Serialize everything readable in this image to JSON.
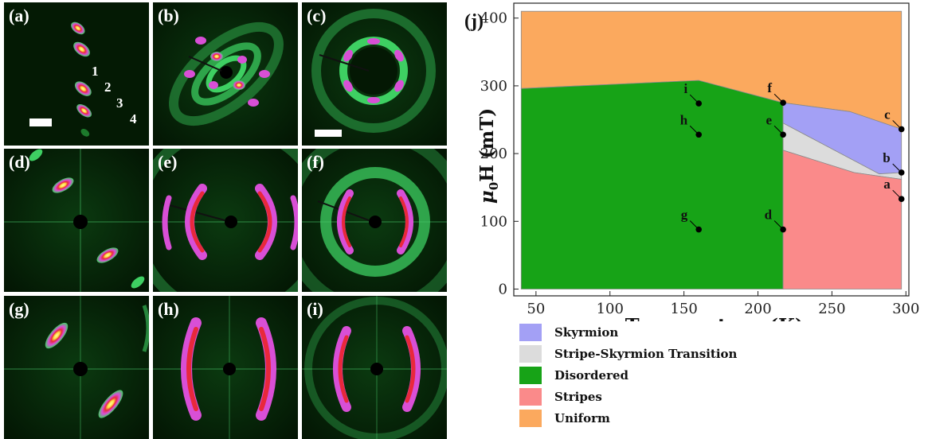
{
  "panels": {
    "a": {
      "label": "(a)",
      "peaks": [
        "1",
        "2",
        "3",
        "4"
      ]
    },
    "b": {
      "label": "(b)"
    },
    "c": {
      "label": "(c)"
    },
    "d": {
      "label": "(d)"
    },
    "e": {
      "label": "(e)"
    },
    "f": {
      "label": "(f)"
    },
    "g": {
      "label": "(g)"
    },
    "h": {
      "label": "(h)"
    },
    "i": {
      "label": "(i)"
    }
  },
  "colors": {
    "skyrmion": "#a3a0f5",
    "transition": "#dcdcdc",
    "disordered": "#17a317",
    "stripes": "#fa8a8a",
    "uniform": "#fba95e",
    "scatter_bg": "#052005",
    "ring": "#3ecf62",
    "peak": "#d84fd6"
  },
  "chart_data": {
    "type": "area",
    "panel_label": "(j)",
    "xlabel": "Temperature (K)",
    "ylabel": "μ0H (mT)",
    "ylabel_main": "μ",
    "ylabel_sub": "0",
    "ylabel_rest": "H (mT)",
    "xlim": [
      35,
      302
    ],
    "ylim": [
      -10,
      422
    ],
    "xticks": [
      50,
      100,
      150,
      200,
      250,
      300
    ],
    "yticks": [
      0,
      100,
      200,
      300,
      400
    ],
    "grid": false,
    "regions": [
      {
        "name": "Uniform",
        "color": "#fba95e",
        "points": [
          [
            40,
            410
          ],
          [
            297,
            410
          ],
          [
            297,
            236
          ],
          [
            262,
            262
          ],
          [
            217,
            275
          ],
          [
            160,
            308
          ],
          [
            40,
            296
          ]
        ]
      },
      {
        "name": "Disordered",
        "color": "#17a317",
        "points": [
          [
            40,
            0
          ],
          [
            217,
            0
          ],
          [
            217,
            275
          ],
          [
            160,
            308
          ],
          [
            40,
            296
          ]
        ]
      },
      {
        "name": "Skyrmion",
        "color": "#a3a0f5",
        "points": [
          [
            217,
            275
          ],
          [
            262,
            262
          ],
          [
            297,
            236
          ],
          [
            297,
            172
          ],
          [
            282,
            170
          ],
          [
            217,
            245
          ]
        ]
      },
      {
        "name": "Stripe-Skyrmion Transition",
        "color": "#dcdcdc",
        "points": [
          [
            217,
            245
          ],
          [
            282,
            170
          ],
          [
            297,
            172
          ],
          [
            297,
            162
          ],
          [
            265,
            172
          ],
          [
            217,
            205
          ]
        ]
      },
      {
        "name": "Stripes",
        "color": "#fa8a8a",
        "points": [
          [
            217,
            0
          ],
          [
            297,
            0
          ],
          [
            297,
            162
          ],
          [
            265,
            172
          ],
          [
            217,
            205
          ]
        ]
      }
    ],
    "points": [
      {
        "label": "a",
        "x": 297,
        "y": 133
      },
      {
        "label": "b",
        "x": 297,
        "y": 172
      },
      {
        "label": "c",
        "x": 297,
        "y": 236
      },
      {
        "label": "d",
        "x": 217,
        "y": 88
      },
      {
        "label": "e",
        "x": 217,
        "y": 228
      },
      {
        "label": "f",
        "x": 217,
        "y": 275
      },
      {
        "label": "g",
        "x": 160,
        "y": 88
      },
      {
        "label": "h",
        "x": 160,
        "y": 228
      },
      {
        "label": "i",
        "x": 160,
        "y": 274
      }
    ],
    "legend": [
      {
        "name": "Skyrmion",
        "color": "#a3a0f5"
      },
      {
        "name": "Stripe-Skyrmion Transition",
        "color": "#dcdcdc"
      },
      {
        "name": "Disordered",
        "color": "#17a317"
      },
      {
        "name": "Stripes",
        "color": "#fa8a8a"
      },
      {
        "name": "Uniform",
        "color": "#fba95e"
      }
    ]
  }
}
